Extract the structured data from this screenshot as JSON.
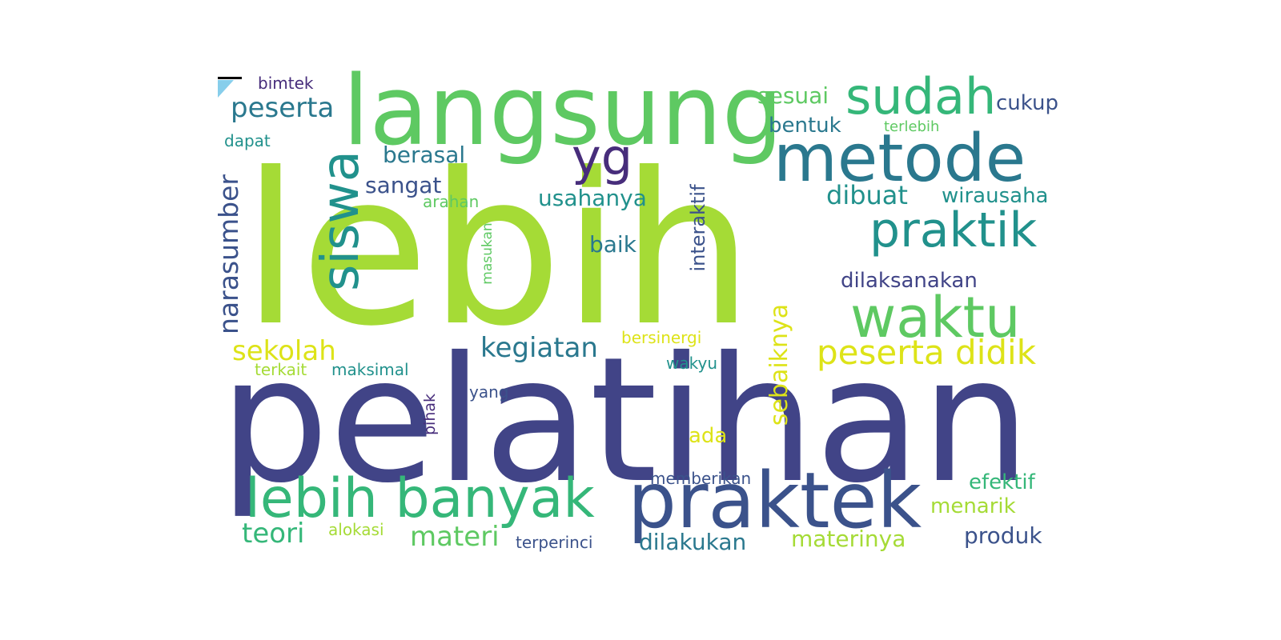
{
  "palette": {
    "yellow_green": "#a5db36",
    "green": "#5ec962",
    "teal_green": "#35b779",
    "teal": "#21918c",
    "blue_teal": "#2a788e",
    "blue": "#3b528b",
    "indigo": "#414487",
    "purple": "#472d7b",
    "yellow": "#dde318"
  },
  "words": {
    "lebih": "lebih",
    "pelatihan": "pelatihan",
    "langsung": "langsung",
    "metode": "metode",
    "praktek": "praktek",
    "lebih_banyak": "lebih banyak",
    "siswa": "siswa",
    "sudah": "sudah",
    "praktik": "praktik",
    "waktu": "waktu",
    "yg": "yg",
    "peserta_didik": "peserta didik",
    "peserta": "peserta",
    "narasumber": "narasumber",
    "kegiatan": "kegiatan",
    "sekolah": "sekolah",
    "materi": "materi",
    "teori": "teori",
    "dibuat": "dibuat",
    "wirausaha": "wirausaha",
    "usahanya": "usahanya",
    "sangat": "sangat",
    "berasal": "berasal",
    "interaktif": "interaktif",
    "sebaiknya": "sebaiknya",
    "dilaksanakan": "dilaksanakan",
    "sesuai": "sesuai",
    "bentuk": "bentuk",
    "cukup": "cukup",
    "baik": "baik",
    "efektif": "efektif",
    "menarik": "menarik",
    "dilakukan": "dilakukan",
    "materinya": "materinya",
    "produk": "produk",
    "ada": "ada",
    "bimtek": "bimtek",
    "dapat": "dapat",
    "arahan": "arahan",
    "masukan": "masukan",
    "terlebih": "terlebih",
    "bersinergi": "bersinergi",
    "wakyu": "wakyu",
    "terkait": "terkait",
    "maksimal": "maksimal",
    "yang": "yang",
    "pihak": "pihak",
    "memberikan": "memberikan",
    "alokasi": "alokasi",
    "terperinci": "terperinci"
  }
}
